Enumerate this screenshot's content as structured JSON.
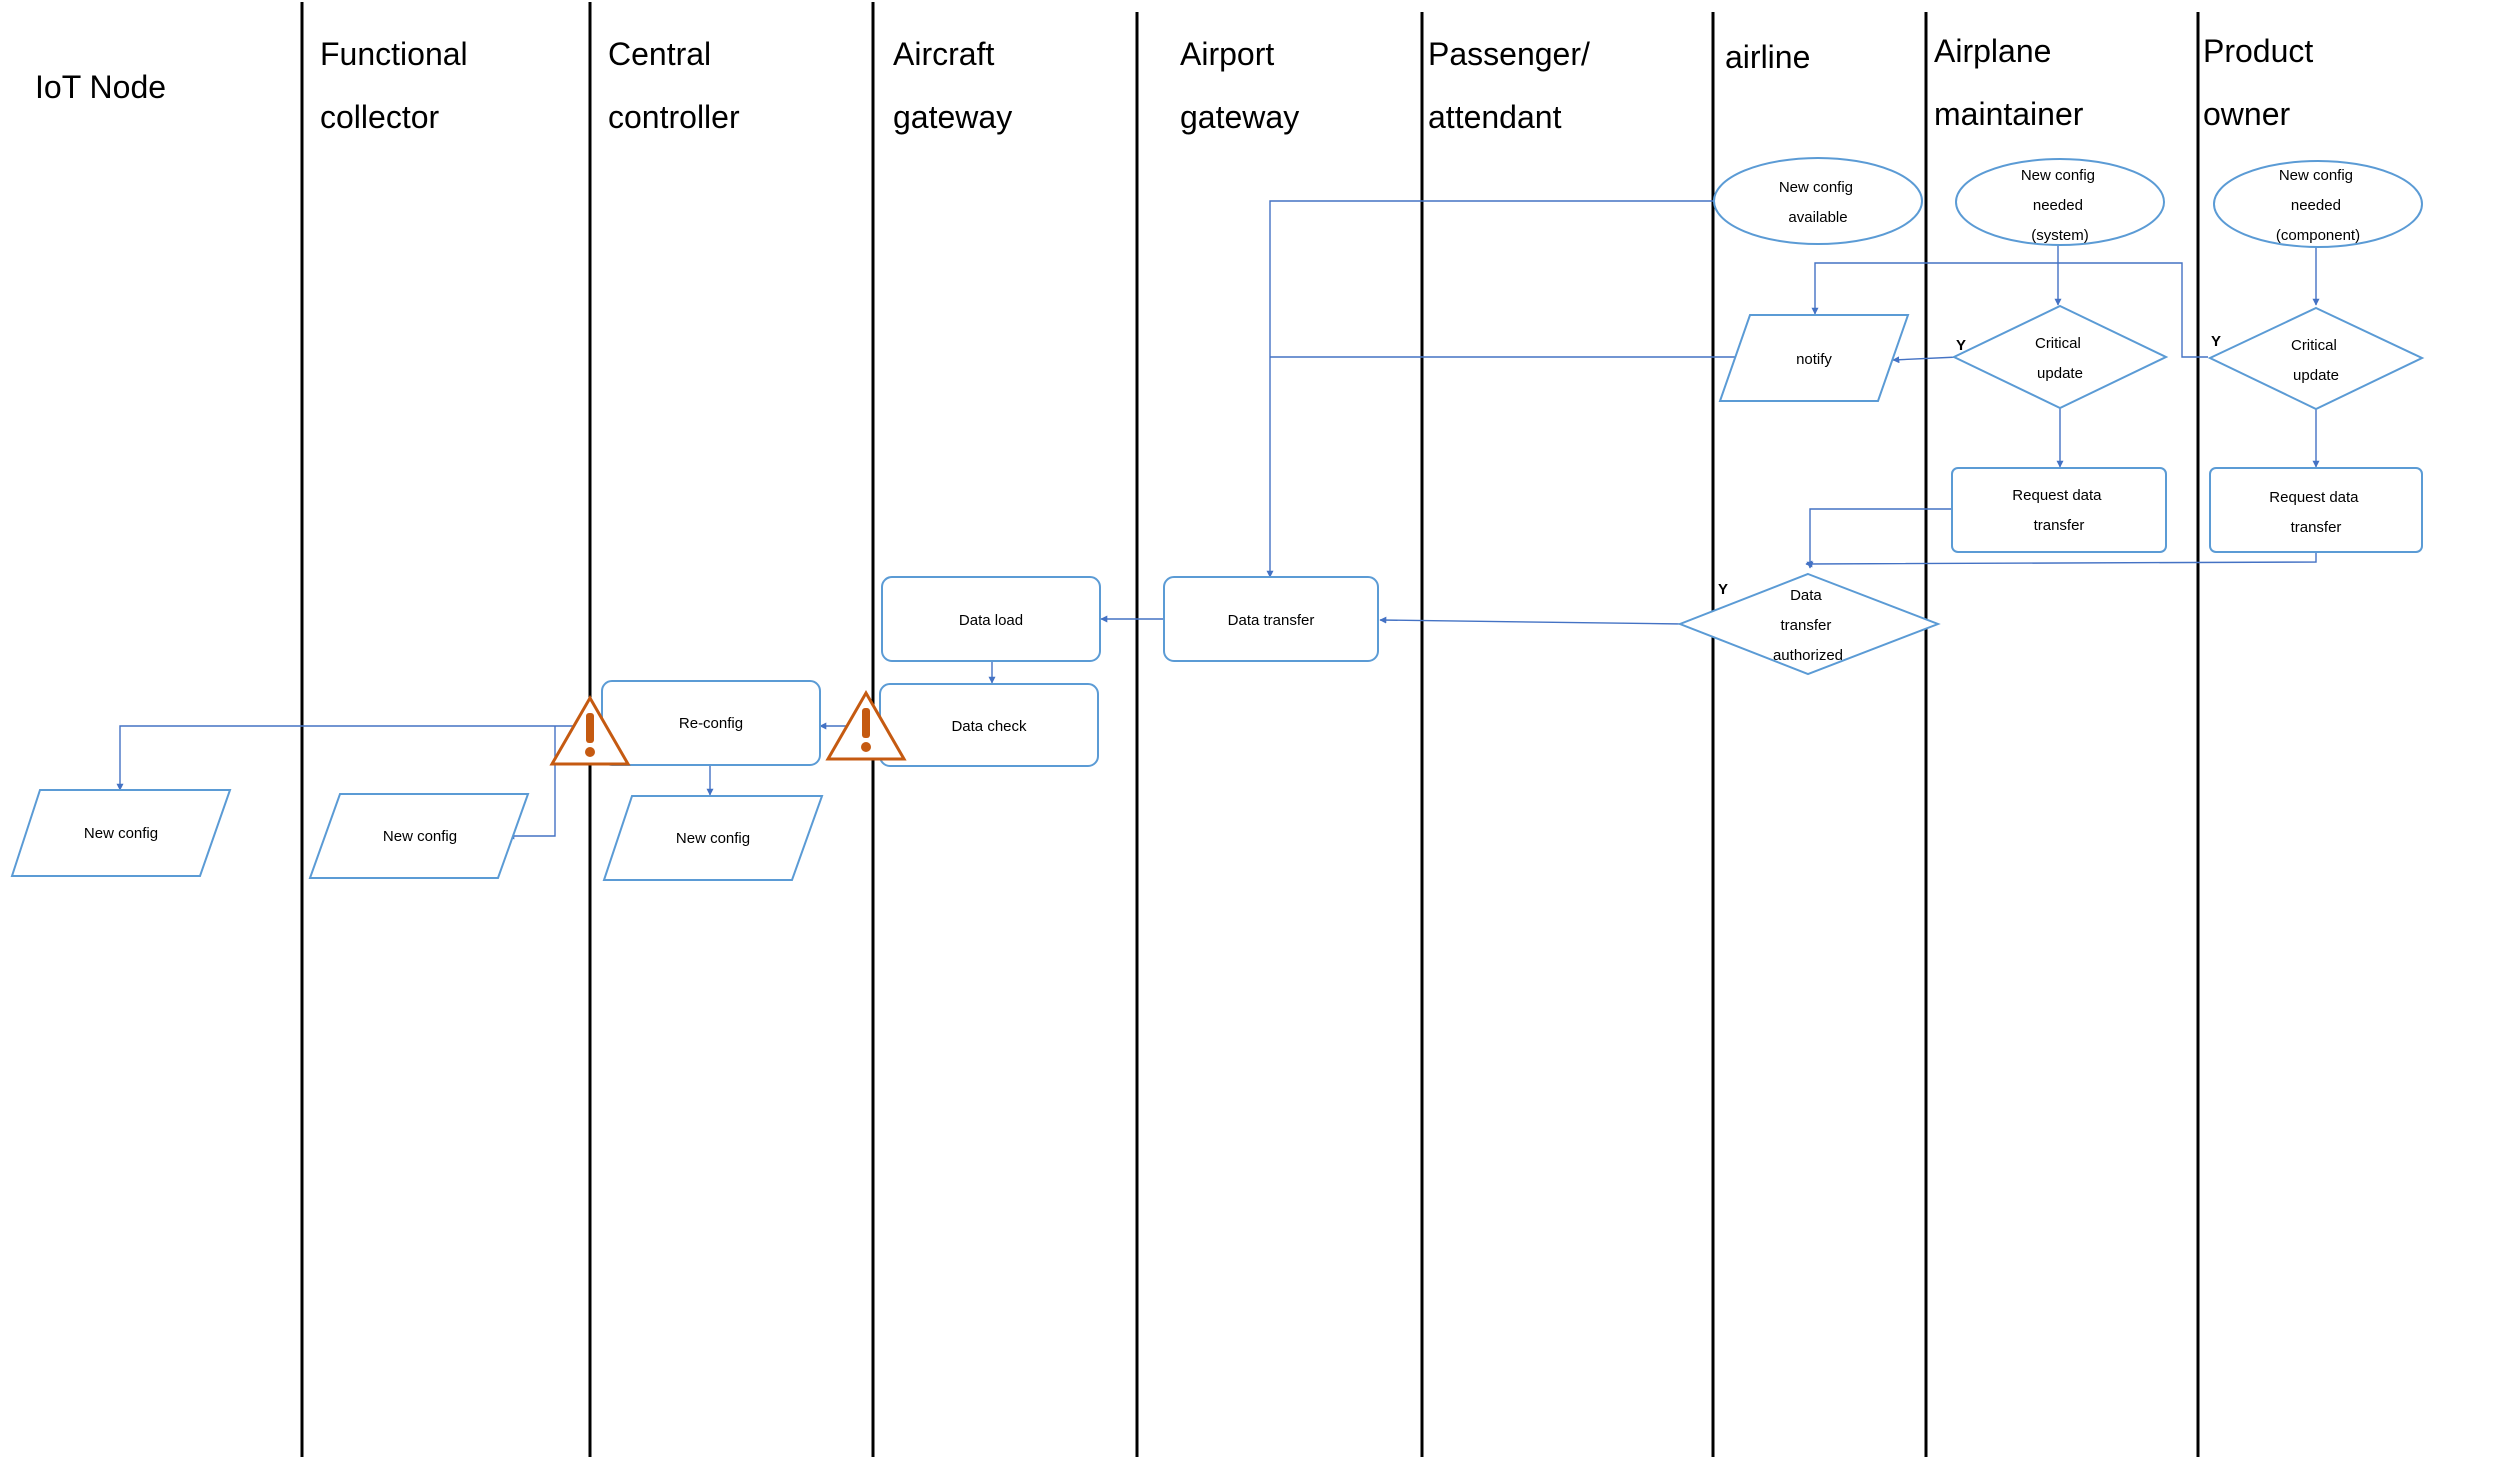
{
  "lanes": [
    {
      "id": "iot",
      "title": [
        "IoT Node"
      ]
    },
    {
      "id": "fc",
      "title": [
        "Functional",
        "collector"
      ]
    },
    {
      "id": "cc",
      "title": [
        "Central",
        "controller"
      ]
    },
    {
      "id": "ag",
      "title": [
        "Aircraft",
        "gateway"
      ]
    },
    {
      "id": "apg",
      "title": [
        "Airport",
        "gateway"
      ]
    },
    {
      "id": "pa",
      "title": [
        "Passenger/",
        "attendant"
      ]
    },
    {
      "id": "al",
      "title": [
        "airline"
      ]
    },
    {
      "id": "am",
      "title": [
        "Airplane",
        "maintainer"
      ]
    },
    {
      "id": "po",
      "title": [
        "Product",
        "owner"
      ]
    }
  ],
  "nodes": {
    "new_config_available": [
      "New config",
      "available"
    ],
    "new_config_needed_system": [
      "New config",
      "needed",
      "(system)"
    ],
    "new_config_needed_component": [
      "New config",
      "needed",
      "(component)"
    ],
    "notify": [
      "notify"
    ],
    "critical_update_am": [
      "Critical",
      "update"
    ],
    "critical_update_po": [
      "Critical",
      "update"
    ],
    "request_data_transfer_am": [
      "Request data",
      "transfer"
    ],
    "request_data_transfer_po": [
      "Request data",
      "transfer"
    ],
    "data_transfer_authorized": [
      "Data",
      "transfer",
      "authorized"
    ],
    "data_transfer": [
      "Data transfer"
    ],
    "data_load": [
      "Data load"
    ],
    "data_check": [
      "Data check"
    ],
    "re_config": [
      "Re-config"
    ],
    "new_config_iot": [
      "New config"
    ],
    "new_config_fc": [
      "New config"
    ],
    "new_config_cc": [
      "New config"
    ]
  },
  "labels": {
    "yes_am": "Y",
    "yes_po": "Y",
    "yes_auth": "Y"
  },
  "colors": {
    "shape_stroke": "#5b9bd5",
    "connector": "#4472c4",
    "warning": "#c55a11"
  },
  "icons": {
    "warning_1": "warning-icon",
    "warning_2": "warning-icon"
  }
}
